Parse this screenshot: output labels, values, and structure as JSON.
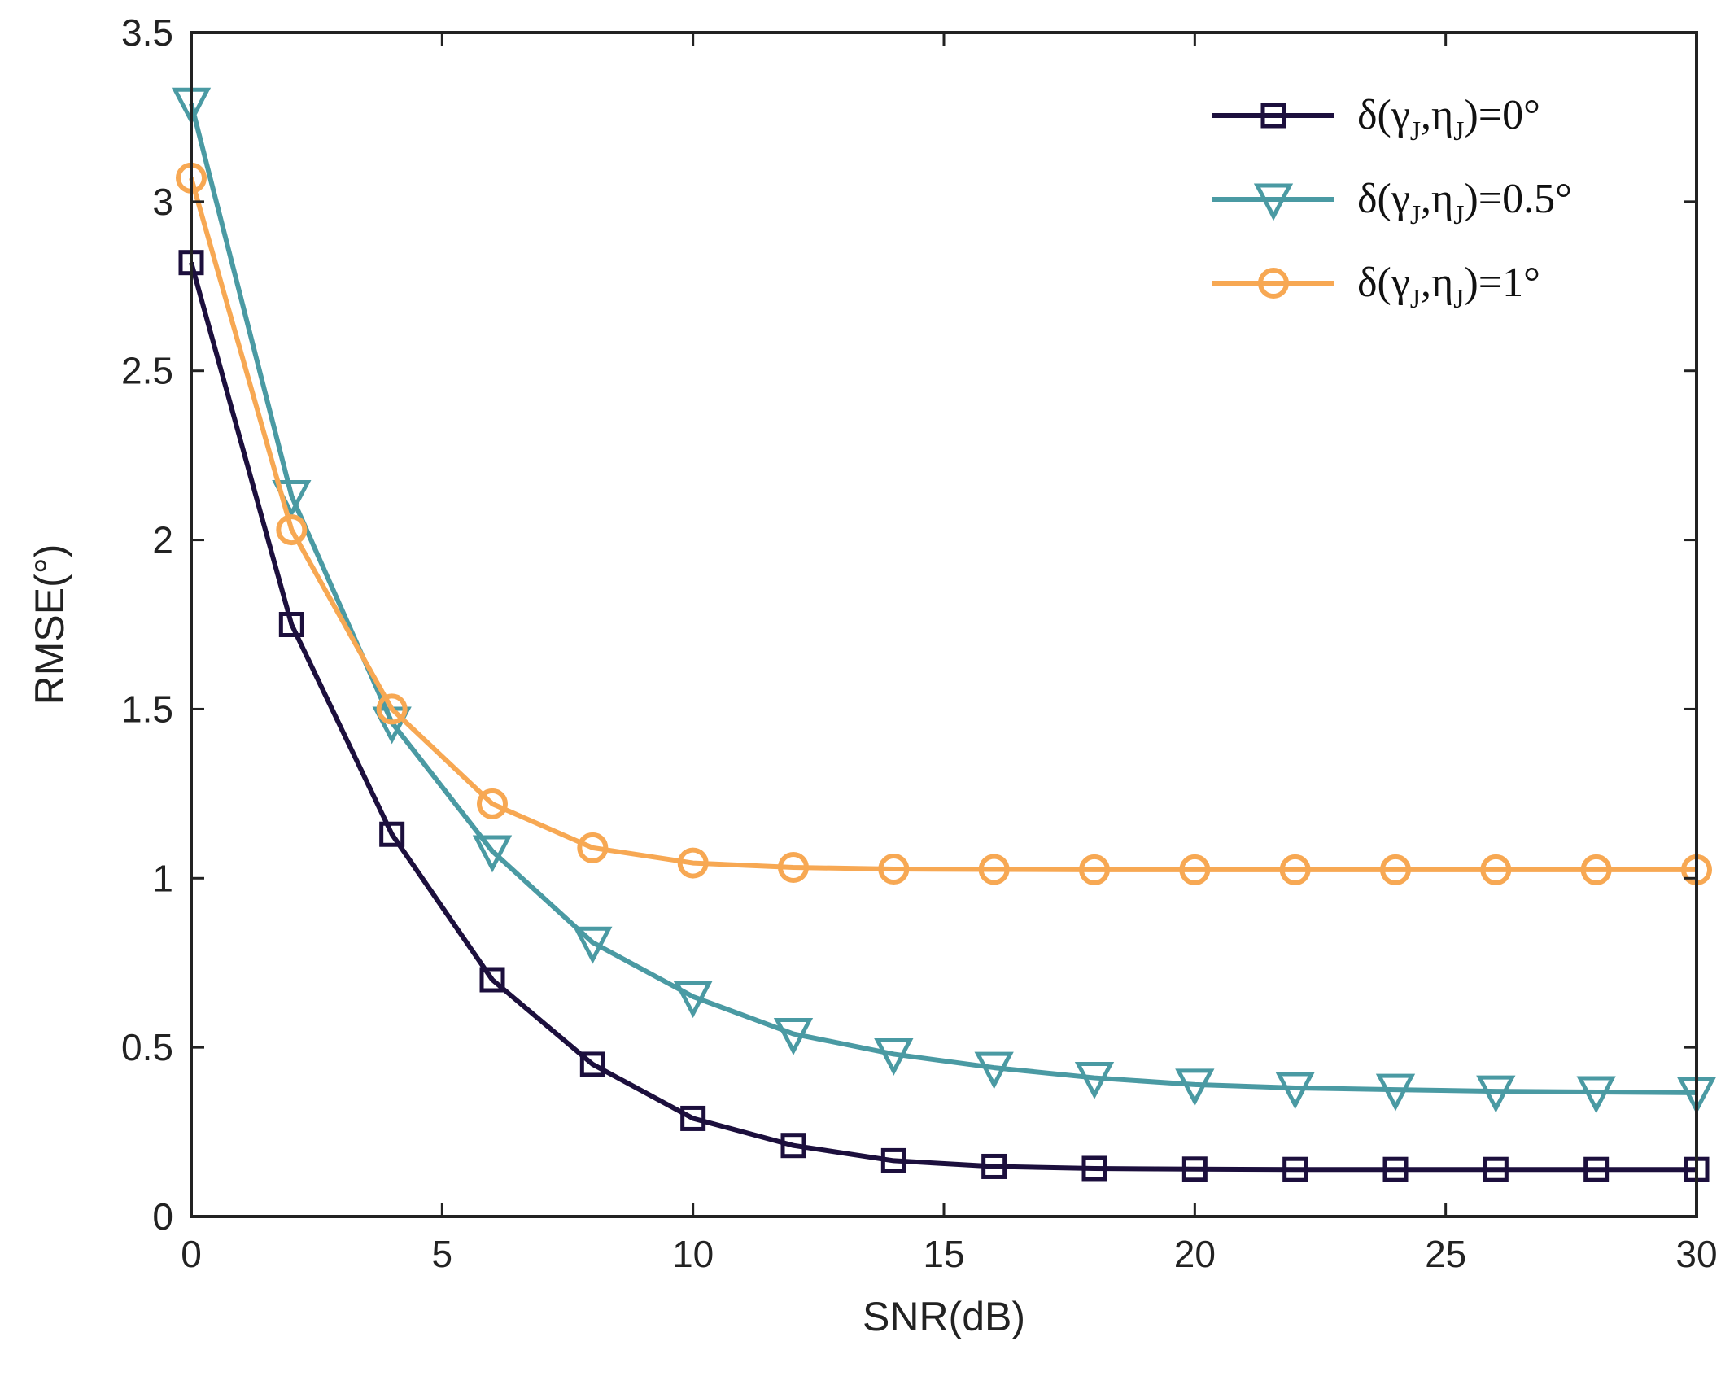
{
  "chart_data": {
    "type": "line",
    "title": "",
    "xlabel": "SNR(dB)",
    "ylabel": "RMSE(°)",
    "xlim": [
      0,
      30
    ],
    "ylim": [
      0,
      3.5
    ],
    "xticks": [
      0,
      5,
      10,
      15,
      20,
      25,
      30
    ],
    "xtick_labels": [
      "0",
      "5",
      "10",
      "15",
      "20",
      "25",
      "30"
    ],
    "yticks": [
      0,
      0.5,
      1,
      1.5,
      2,
      2.5,
      3,
      3.5
    ],
    "ytick_labels": [
      "0",
      "0.5",
      "1",
      "1.5",
      "2",
      "2.5",
      "3",
      "3.5"
    ],
    "grid": false,
    "legend_position": "top-right",
    "x": [
      0,
      2,
      4,
      6,
      8,
      10,
      12,
      14,
      16,
      18,
      20,
      22,
      24,
      26,
      28,
      30
    ],
    "series": [
      {
        "name": "δ(γJ,ηJ)=0°",
        "legend": {
          "delta": "δ(",
          "gamma": "γ",
          "sub1": "J",
          "comma": ",",
          "eta": "η",
          "sub2": "J",
          "close": ")=0°"
        },
        "marker": "square",
        "color": "#1c0f3d",
        "values": [
          2.82,
          1.75,
          1.13,
          0.7,
          0.45,
          0.29,
          0.21,
          0.165,
          0.148,
          0.142,
          0.14,
          0.139,
          0.139,
          0.139,
          0.139,
          0.139
        ]
      },
      {
        "name": "δ(γJ,ηJ)=0.5°",
        "legend": {
          "delta": "δ(",
          "gamma": "γ",
          "sub1": "J",
          "comma": ",",
          "eta": "η",
          "sub2": "J",
          "close": ")=0.5°"
        },
        "marker": "triangle-down",
        "color": "#4a9aa3",
        "values": [
          3.29,
          2.13,
          1.46,
          1.08,
          0.81,
          0.65,
          0.54,
          0.48,
          0.44,
          0.41,
          0.39,
          0.38,
          0.375,
          0.37,
          0.368,
          0.366
        ]
      },
      {
        "name": "δ(γJ,ηJ)=1°",
        "legend": {
          "delta": "δ(",
          "gamma": "γ",
          "sub1": "J",
          "comma": ",",
          "eta": "η",
          "sub2": "J",
          "close": ")=1°"
        },
        "marker": "circle",
        "color": "#f7a853",
        "values": [
          3.07,
          2.03,
          1.5,
          1.22,
          1.09,
          1.045,
          1.032,
          1.027,
          1.026,
          1.025,
          1.025,
          1.025,
          1.025,
          1.025,
          1.025,
          1.025
        ]
      }
    ]
  }
}
